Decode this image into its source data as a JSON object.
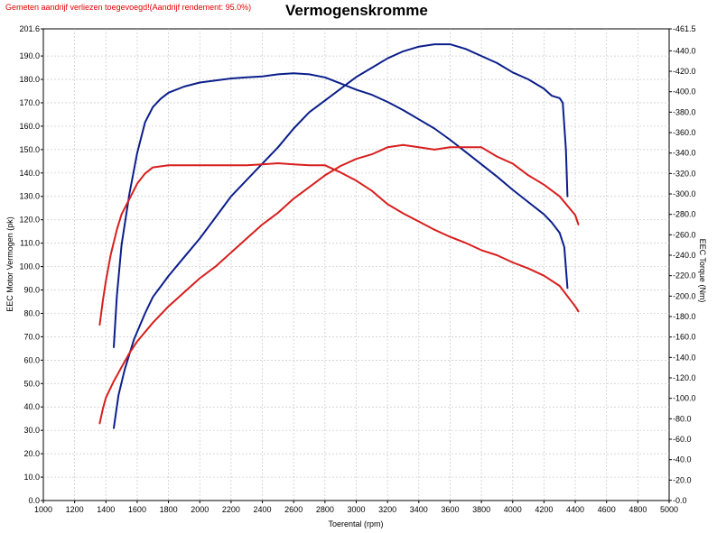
{
  "note": "Gemeten aandrijf verliezen toegevoegd!(Aandrijf rendement: 95.0%)",
  "title": "Vermogenskromme",
  "colors": {
    "blue": "#0b1e8a",
    "red": "#d81e1e"
  },
  "chart_data": {
    "type": "line",
    "title": "Vermogenskromme",
    "xlabel": "Toerental (rpm)",
    "ylabel": "EEC Motor Vermogen (pk)",
    "y2label": "EEC Torque (Nm)",
    "xlim": [
      1000,
      5000
    ],
    "ylim": [
      0,
      201.6
    ],
    "y2lim": [
      0,
      461.5
    ],
    "grid": true,
    "legend": "none",
    "x_ticks": [
      "1000",
      "1200",
      "1400",
      "1600",
      "1800",
      "2000",
      "2200",
      "2400",
      "2600",
      "2800",
      "3000",
      "3200",
      "3400",
      "3600",
      "3800",
      "4000",
      "4200",
      "4400",
      "4600",
      "4800",
      "5000"
    ],
    "y_ticks": [
      "0.0",
      "10.0",
      "20.0",
      "30.0",
      "40.0",
      "50.0",
      "60.0",
      "70.0",
      "80.0",
      "90.0",
      "100.0",
      "110.0",
      "120.0",
      "130.0",
      "140.0",
      "150.0",
      "160.0",
      "170.0",
      "180.0",
      "190.0",
      "201.6"
    ],
    "y2_ticks": [
      "0.0",
      "20.0",
      "40.0",
      "60.0",
      "80.0",
      "100.0",
      "120.0",
      "140.0",
      "160.0",
      "180.0",
      "200.0",
      "220.0",
      "240.0",
      "260.0",
      "280.0",
      "300.0",
      "320.0",
      "340.0",
      "360.0",
      "380.0",
      "400.0",
      "420.0",
      "440.0",
      "461.5"
    ],
    "series": [
      {
        "color": "#0b1e8a",
        "axis": "y2",
        "x": [
          1450,
          1470,
          1500,
          1550,
          1600,
          1650,
          1700,
          1750,
          1800,
          1900,
          2000,
          2100,
          2200,
          2300,
          2400,
          2500,
          2600,
          2700,
          2800,
          2900,
          3000,
          3100,
          3200,
          3300,
          3400,
          3500,
          3600,
          3700,
          3800,
          3900,
          4000,
          4100,
          4200,
          4250,
          4300,
          4330,
          4350
        ],
        "y": [
          150,
          200,
          250,
          300,
          340,
          370,
          385,
          393,
          399,
          405,
          409,
          411,
          413,
          414,
          415,
          417,
          418,
          417,
          414,
          408,
          402,
          397,
          390,
          382,
          373,
          364,
          353,
          341,
          329,
          317,
          304,
          292,
          280,
          272,
          262,
          248,
          208
        ]
      },
      {
        "color": "#0b1e8a",
        "axis": "y",
        "x": [
          1450,
          1480,
          1520,
          1580,
          1650,
          1700,
          1800,
          1900,
          2000,
          2100,
          2200,
          2300,
          2400,
          2500,
          2600,
          2700,
          2800,
          2900,
          3000,
          3100,
          3200,
          3300,
          3400,
          3500,
          3600,
          3700,
          3800,
          3900,
          4000,
          4100,
          4200,
          4250,
          4300,
          4320,
          4340,
          4350
        ],
        "y": [
          31,
          45,
          56,
          69,
          80,
          87,
          96,
          104,
          112,
          121,
          130,
          137,
          144,
          151,
          159,
          166,
          171,
          176,
          181,
          185,
          189,
          192,
          194,
          195,
          195,
          193,
          190,
          187,
          183,
          180,
          176,
          173,
          172,
          170,
          150,
          130
        ]
      },
      {
        "color": "#d81e1e",
        "axis": "y2",
        "x": [
          1360,
          1380,
          1400,
          1430,
          1470,
          1500,
          1550,
          1600,
          1650,
          1700,
          1800,
          1900,
          2000,
          2100,
          2200,
          2300,
          2400,
          2500,
          2600,
          2700,
          2800,
          2900,
          3000,
          3100,
          3200,
          3300,
          3400,
          3500,
          3600,
          3700,
          3800,
          3900,
          4000,
          4100,
          4200,
          4300,
          4400,
          4420
        ],
        "y": [
          172,
          195,
          215,
          240,
          265,
          280,
          295,
          310,
          320,
          326,
          328,
          328,
          328,
          328,
          328,
          328,
          329,
          330,
          329,
          328,
          328,
          321,
          313,
          303,
          290,
          281,
          273,
          265,
          258,
          252,
          245,
          240,
          233,
          227,
          220,
          210,
          190,
          185
        ]
      },
      {
        "color": "#d81e1e",
        "axis": "y",
        "x": [
          1360,
          1380,
          1400,
          1450,
          1500,
          1550,
          1600,
          1700,
          1800,
          1900,
          2000,
          2100,
          2200,
          2300,
          2400,
          2500,
          2600,
          2700,
          2800,
          2900,
          3000,
          3100,
          3200,
          3300,
          3400,
          3500,
          3600,
          3700,
          3800,
          3900,
          4000,
          4100,
          4200,
          4300,
          4400,
          4420
        ],
        "y": [
          33,
          39,
          44,
          51,
          57,
          63,
          68,
          76,
          83,
          89,
          95,
          100,
          106,
          112,
          118,
          123,
          129,
          134,
          139,
          143,
          146,
          148,
          151,
          152,
          151,
          150,
          151,
          151,
          151,
          147,
          144,
          139,
          135,
          130,
          122,
          118
        ]
      }
    ]
  }
}
